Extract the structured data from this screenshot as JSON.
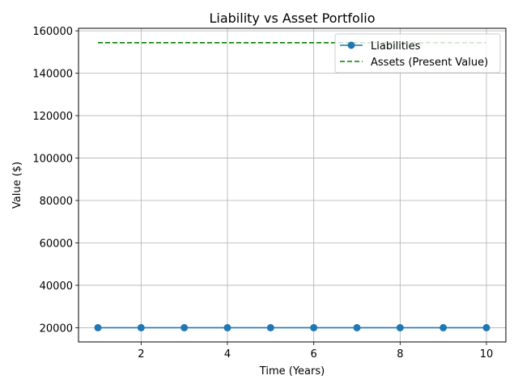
{
  "chart_data": {
    "type": "line",
    "title": "Liability vs Asset Portfolio",
    "xlabel": "Time (Years)",
    "ylabel": "Value ($)",
    "xlim": [
      0.55,
      10.45
    ],
    "ylim": [
      13300,
      161200
    ],
    "xticks": [
      2,
      4,
      6,
      8,
      10
    ],
    "yticks": [
      20000,
      40000,
      60000,
      80000,
      100000,
      120000,
      140000,
      160000
    ],
    "grid": true,
    "legend_position": "top-right",
    "series": [
      {
        "name": "Liabilities",
        "color": "#1f77b4",
        "style": "solid",
        "marker": "circle",
        "x": [
          1,
          2,
          3,
          4,
          5,
          6,
          7,
          8,
          9,
          10
        ],
        "y": [
          20000,
          20000,
          20000,
          20000,
          20000,
          20000,
          20000,
          20000,
          20000,
          20000
        ]
      },
      {
        "name": "Assets (Present Value)",
        "color": "#008000",
        "style": "dashed",
        "marker": "none",
        "x": [
          1,
          10
        ],
        "y": [
          154400,
          154400
        ]
      }
    ]
  }
}
